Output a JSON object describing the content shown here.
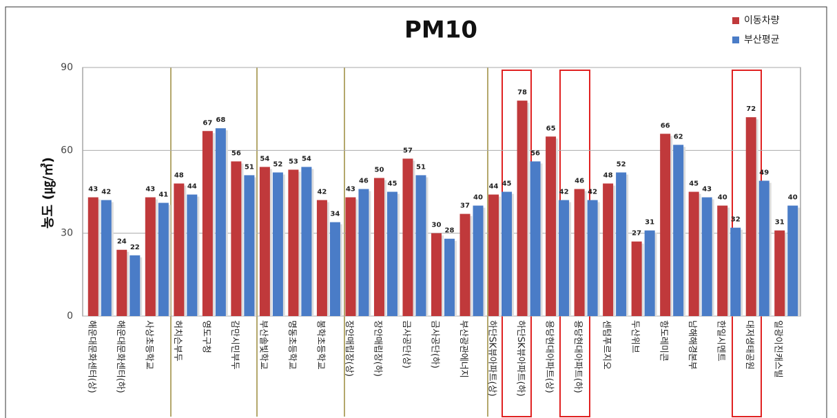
{
  "chart_data": {
    "type": "bar",
    "title": "PM10",
    "y_label": "농도 (㎍/㎥)",
    "categories": [
      "해운대문화센터(상)",
      "해운대문화센터(하)",
      "사상초등학교",
      "허치슨부두",
      "영도구청",
      "감만시민부두",
      "부산솔빛학교",
      "명동초등학교",
      "봉학초등학교",
      "장안매립장(상)",
      "장안매립장(하)",
      "금사공단(상)",
      "금사공단(하)",
      "부산광관에너지",
      "하단SK뷰아파트(상)",
      "하단SK뷰아파트(하)",
      "용당현대아파트(상)",
      "용당현대아파트(하)",
      "센텀푸르지오",
      "두산위브",
      "항도레미콘",
      "남해해경본부",
      "한일시멘트",
      "대저생태공원",
      "일광이진캐스빌"
    ],
    "series": [
      {
        "name": "이동차량",
        "color": "#c0393b",
        "values": [
          43,
          24,
          43,
          48,
          67,
          56,
          54,
          53,
          42,
          43,
          50,
          57,
          30,
          37,
          44,
          78,
          65,
          46,
          48,
          27,
          66,
          45,
          40,
          72,
          31
        ]
      },
      {
        "name": "부산평균",
        "color": "#4a7cc7",
        "values": [
          42,
          22,
          41,
          44,
          68,
          51,
          52,
          54,
          34,
          46,
          45,
          51,
          28,
          40,
          45,
          56,
          42,
          42,
          52,
          31,
          62,
          43,
          32,
          49,
          40
        ]
      }
    ],
    "ylim": [
      0,
      90
    ],
    "yticks": [
      0,
      30,
      60,
      90
    ],
    "grid": true,
    "legend": "top-right"
  }
}
